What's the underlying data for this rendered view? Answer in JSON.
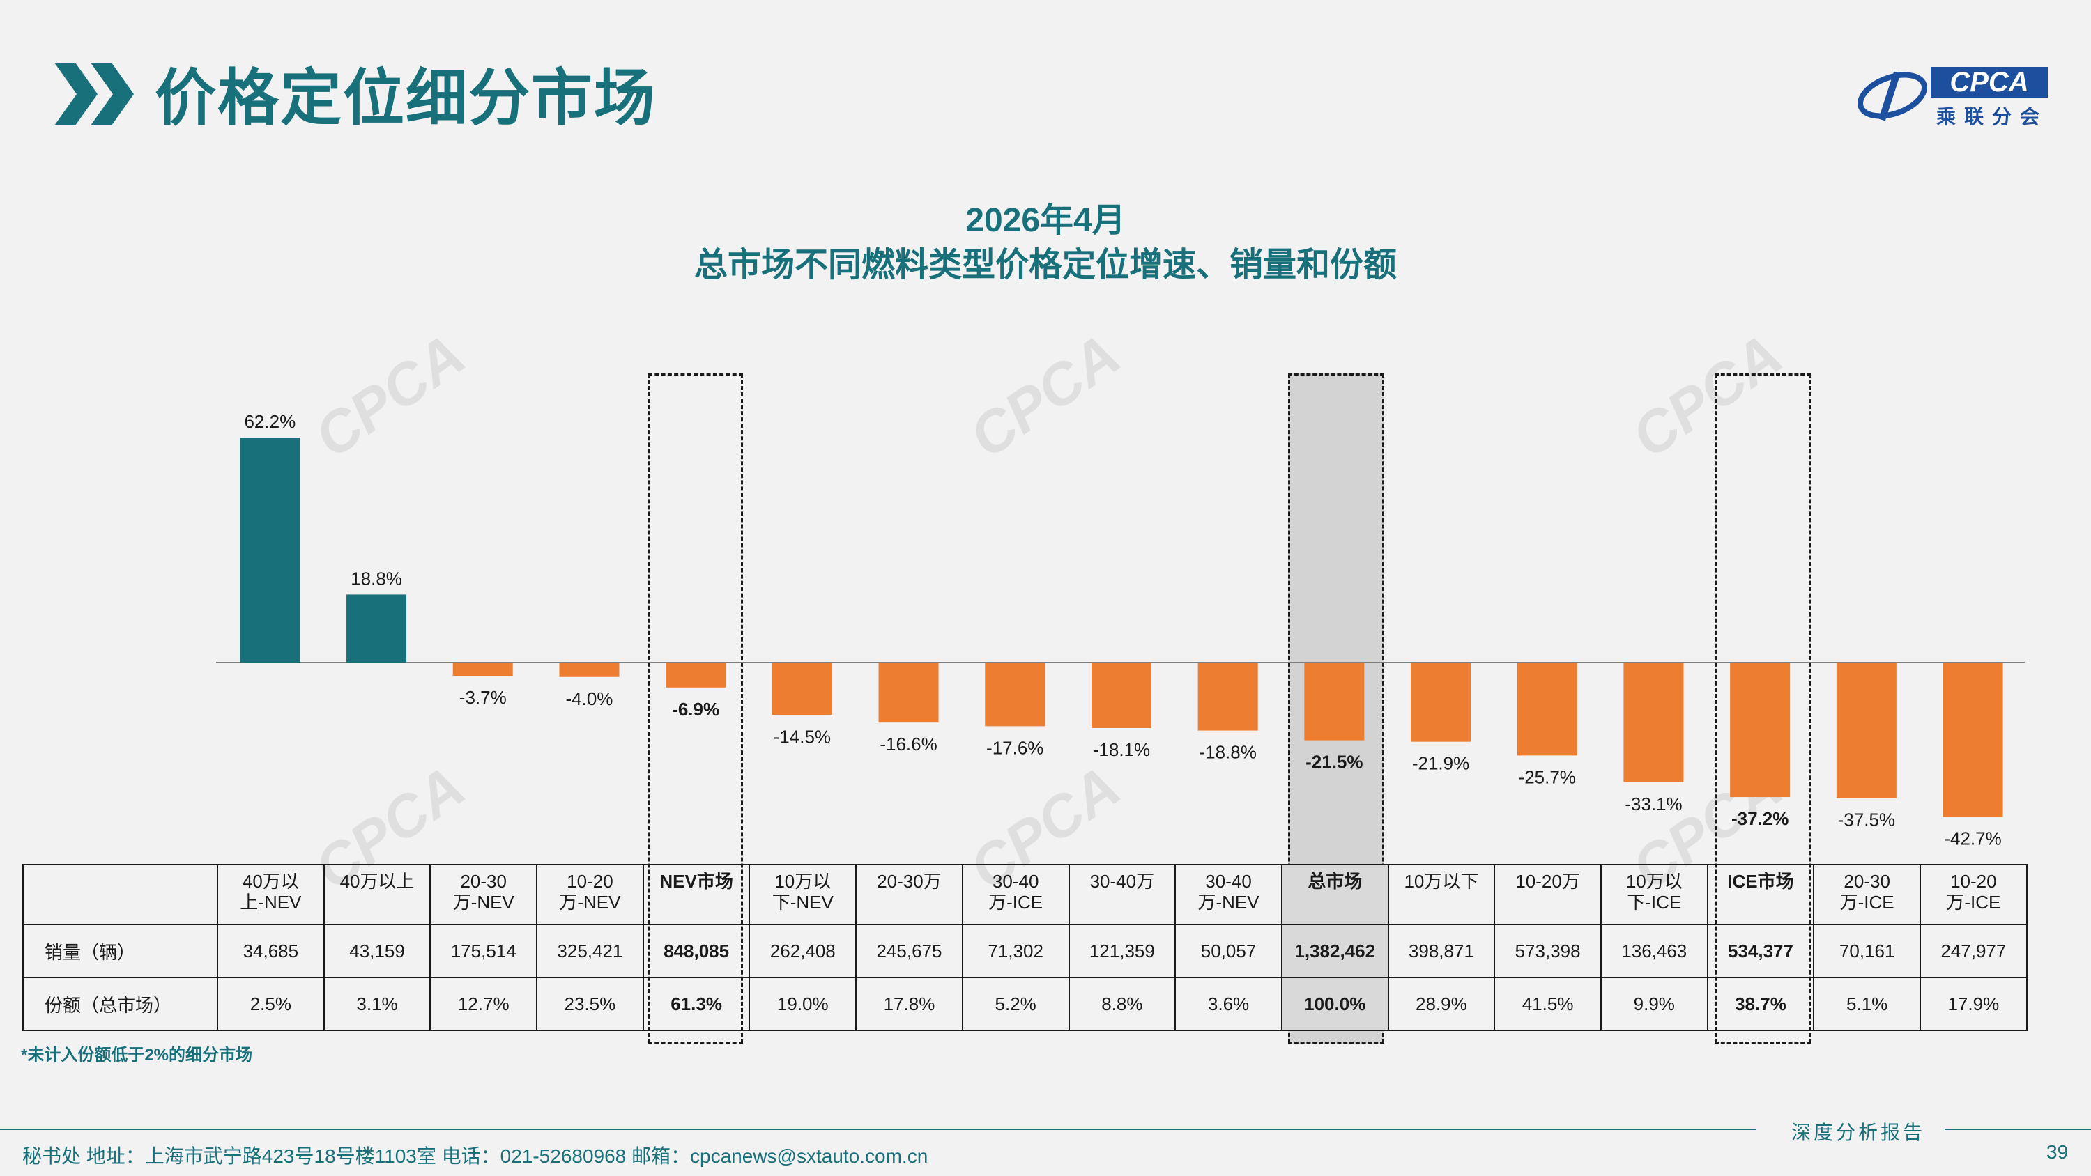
{
  "header": {
    "title": "价格定位细分市场"
  },
  "logo": {
    "text": "CPCA",
    "sub": "乘联分会",
    "watermark": "CPCA"
  },
  "chart_data": {
    "type": "bar",
    "title_line1": "2026年4月",
    "title_line2": "总市场不同燃料类型价格定位增速、销量和份额",
    "categories": [
      "40万以上-NEV",
      "40万以上",
      "20-30万-NEV",
      "10-20万-NEV",
      "NEV市场",
      "10万以下-NEV",
      "20-30万",
      "30-40万-ICE",
      "30-40万",
      "30-40万-NEV",
      "总市场",
      "10万以下",
      "10-20万",
      "10万以下-ICE",
      "ICE市场",
      "20-30万-ICE",
      "10-20万-ICE"
    ],
    "values": [
      62.2,
      18.8,
      -3.7,
      -4.0,
      -6.9,
      -14.5,
      -16.6,
      -17.6,
      -18.1,
      -18.8,
      -21.5,
      -21.9,
      -25.7,
      -33.1,
      -37.2,
      -37.5,
      -42.7
    ],
    "value_labels": [
      "62.2%",
      "18.8%",
      "-3.7%",
      "-4.0%",
      "-6.9%",
      "-14.5%",
      "-16.6%",
      "-17.6%",
      "-18.1%",
      "-18.8%",
      "-21.5%",
      "-21.9%",
      "-25.7%",
      "-33.1%",
      "-37.2%",
      "-37.5%",
      "-42.7%"
    ],
    "highlighted": [
      4,
      10,
      14
    ],
    "colors": {
      "positive": "#17707a",
      "negative": "#ed7d31"
    },
    "ylabel": "",
    "xlabel": ""
  },
  "table": {
    "headers": [
      [
        "40万以",
        "上-NEV"
      ],
      [
        "40万以上",
        ""
      ],
      [
        "20-30",
        "万-NEV"
      ],
      [
        "10-20",
        "万-NEV"
      ],
      [
        "NEV市场",
        ""
      ],
      [
        "10万以",
        "下-NEV"
      ],
      [
        "20-30万",
        ""
      ],
      [
        "30-40",
        "万-ICE"
      ],
      [
        "30-40万",
        ""
      ],
      [
        "30-40",
        "万-NEV"
      ],
      [
        "总市场",
        ""
      ],
      [
        "10万以下",
        ""
      ],
      [
        "10-20万",
        ""
      ],
      [
        "10万以",
        "下-ICE"
      ],
      [
        "ICE市场",
        ""
      ],
      [
        "20-30",
        "万-ICE"
      ],
      [
        "10-20",
        "万-ICE"
      ]
    ],
    "rows": [
      {
        "label": "销量（辆）",
        "values": [
          "34,685",
          "43,159",
          "175,514",
          "325,421",
          "848,085",
          "262,408",
          "245,675",
          "71,302",
          "121,359",
          "50,057",
          "1,382,462",
          "398,871",
          "573,398",
          "136,463",
          "534,377",
          "70,161",
          "247,977"
        ]
      },
      {
        "label": "份额（总市场）",
        "values": [
          "2.5%",
          "3.1%",
          "12.7%",
          "23.5%",
          "61.3%",
          "19.0%",
          "17.8%",
          "5.2%",
          "8.8%",
          "3.6%",
          "100.0%",
          "28.9%",
          "41.5%",
          "9.9%",
          "38.7%",
          "5.1%",
          "17.9%"
        ]
      }
    ]
  },
  "note": "*未计入份额低于2%的细分市场",
  "footer": {
    "text": "秘书处   地址：上海市武宁路423号18号楼1103室  电话：021-52680968   邮箱：cpcanews@sxtauto.com.cn",
    "report": "深度分析报告",
    "page": "39"
  }
}
